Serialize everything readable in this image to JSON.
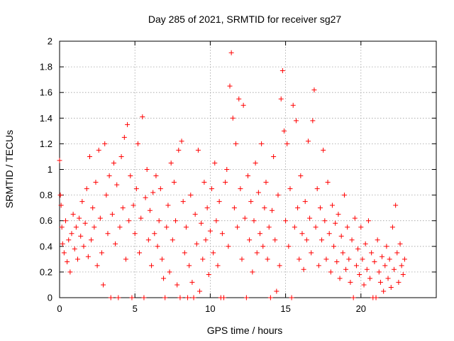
{
  "chart_data": {
    "type": "scatter",
    "title": "Day 285 of 2021, SRMTID for receiver sg27",
    "xlabel": "GPS time / hours",
    "ylabel": "SRMTID / TECUs",
    "xlim": [
      0,
      25
    ],
    "ylim": [
      0,
      2
    ],
    "xticks": [
      0,
      5,
      10,
      15,
      20
    ],
    "yticks": [
      0,
      0.2,
      0.4,
      0.6,
      0.8,
      1,
      1.2,
      1.4,
      1.6,
      1.8,
      2
    ],
    "xtick_labels": [
      "0",
      "5",
      "10",
      "15",
      "20"
    ],
    "ytick_labels": [
      "0",
      "0.2",
      "0.4",
      "0.6",
      "0.8",
      "1",
      "1.2",
      "1.4",
      "1.6",
      "1.8",
      "2"
    ],
    "grid": true,
    "marker": "plus",
    "color": "#ff0000",
    "series": [
      {
        "name": "SRMTID",
        "points": [
          [
            0.0,
            1.07
          ],
          [
            0.05,
            0.8
          ],
          [
            0.1,
            0.72
          ],
          [
            0.15,
            0.55
          ],
          [
            0.2,
            0.42
          ],
          [
            0.3,
            0.35
          ],
          [
            0.4,
            0.6
          ],
          [
            0.5,
            0.28
          ],
          [
            0.6,
            0.45
          ],
          [
            0.7,
            0.2
          ],
          [
            0.8,
            0.5
          ],
          [
            0.9,
            0.65
          ],
          [
            1.0,
            0.38
          ],
          [
            1.1,
            0.55
          ],
          [
            1.2,
            0.3
          ],
          [
            1.3,
            0.62
          ],
          [
            1.4,
            0.48
          ],
          [
            1.5,
            0.75
          ],
          [
            1.6,
            0.4
          ],
          [
            1.7,
            0.58
          ],
          [
            1.8,
            0.85
          ],
          [
            1.9,
            0.32
          ],
          [
            2.0,
            1.1
          ],
          [
            2.1,
            0.45
          ],
          [
            2.2,
            0.7
          ],
          [
            2.3,
            0.55
          ],
          [
            2.4,
            0.9
          ],
          [
            2.5,
            0.25
          ],
          [
            2.6,
            1.15
          ],
          [
            2.7,
            0.62
          ],
          [
            2.8,
            0.35
          ],
          [
            2.9,
            0.1
          ],
          [
            3.0,
            1.2
          ],
          [
            3.1,
            0.8
          ],
          [
            3.2,
            0.5
          ],
          [
            3.3,
            0.95
          ],
          [
            3.4,
            0.0
          ],
          [
            3.5,
            0.65
          ],
          [
            3.6,
            1.05
          ],
          [
            3.7,
            0.42
          ],
          [
            3.8,
            0.88
          ],
          [
            3.9,
            0.0
          ],
          [
            4.0,
            0.55
          ],
          [
            4.1,
            1.1
          ],
          [
            4.2,
            0.7
          ],
          [
            4.3,
            1.25
          ],
          [
            4.4,
            0.3
          ],
          [
            4.5,
            1.35
          ],
          [
            4.6,
            0.6
          ],
          [
            4.7,
            0.95
          ],
          [
            4.8,
            0.0
          ],
          [
            4.9,
            0.72
          ],
          [
            5.0,
            0.5
          ],
          [
            5.1,
            0.85
          ],
          [
            5.2,
            1.2
          ],
          [
            5.3,
            0.35
          ],
          [
            5.4,
            0.62
          ],
          [
            5.5,
            1.41
          ],
          [
            5.6,
            0.0
          ],
          [
            5.7,
            0.78
          ],
          [
            5.8,
            1.0
          ],
          [
            5.9,
            0.45
          ],
          [
            6.0,
            0.68
          ],
          [
            6.1,
            0.25
          ],
          [
            6.2,
            0.82
          ],
          [
            6.3,
            0.5
          ],
          [
            6.4,
            0.95
          ],
          [
            6.5,
            0.4
          ],
          [
            6.6,
            0.6
          ],
          [
            6.7,
            0.85
          ],
          [
            6.8,
            0.3
          ],
          [
            6.9,
            0.15
          ],
          [
            7.0,
            0.0
          ],
          [
            7.1,
            0.55
          ],
          [
            7.2,
            0.72
          ],
          [
            7.3,
            0.2
          ],
          [
            7.4,
            1.05
          ],
          [
            7.5,
            0.45
          ],
          [
            7.6,
            0.9
          ],
          [
            7.7,
            0.6
          ],
          [
            7.8,
            0.1
          ],
          [
            7.9,
            1.15
          ],
          [
            8.0,
            0.0
          ],
          [
            8.1,
            1.22
          ],
          [
            8.2,
            0.75
          ],
          [
            8.3,
            0.35
          ],
          [
            8.4,
            0.55
          ],
          [
            8.5,
            0.0
          ],
          [
            8.6,
            0.25
          ],
          [
            8.7,
            0.8
          ],
          [
            8.8,
            0.12
          ],
          [
            8.9,
            0.0
          ],
          [
            9.0,
            0.65
          ],
          [
            9.1,
            0.42
          ],
          [
            9.2,
            1.15
          ],
          [
            9.3,
            0.05
          ],
          [
            9.4,
            0.58
          ],
          [
            9.5,
            0.3
          ],
          [
            9.6,
            0.9
          ],
          [
            9.7,
            0.45
          ],
          [
            9.8,
            0.7
          ],
          [
            9.9,
            0.18
          ],
          [
            10.0,
            0.52
          ],
          [
            10.1,
            0.85
          ],
          [
            10.2,
            0.35
          ],
          [
            10.3,
            1.05
          ],
          [
            10.4,
            0.6
          ],
          [
            10.5,
            0.25
          ],
          [
            10.6,
            0.75
          ],
          [
            10.7,
            0.0
          ],
          [
            10.8,
            0.5
          ],
          [
            10.9,
            0.0
          ],
          [
            11.0,
            0.9
          ],
          [
            11.1,
            1.0
          ],
          [
            11.2,
            0.4
          ],
          [
            11.3,
            1.65
          ],
          [
            11.4,
            1.91
          ],
          [
            11.5,
            1.4
          ],
          [
            11.6,
            0.7
          ],
          [
            11.7,
            1.2
          ],
          [
            11.8,
            0.55
          ],
          [
            11.9,
            1.55
          ],
          [
            12.0,
            0.85
          ],
          [
            12.1,
            0.3
          ],
          [
            12.2,
            1.5
          ],
          [
            12.3,
            0.62
          ],
          [
            12.4,
            0.0
          ],
          [
            12.5,
            0.95
          ],
          [
            12.6,
            0.45
          ],
          [
            12.7,
            0.75
          ],
          [
            12.8,
            0.2
          ],
          [
            12.9,
            0.6
          ],
          [
            13.0,
            1.05
          ],
          [
            13.1,
            0.35
          ],
          [
            13.2,
            0.82
          ],
          [
            13.3,
            0.5
          ],
          [
            13.4,
            1.2
          ],
          [
            13.5,
            0.4
          ],
          [
            13.6,
            0.7
          ],
          [
            13.7,
            0.9
          ],
          [
            13.8,
            0.3
          ],
          [
            13.9,
            0.55
          ],
          [
            14.0,
            0.0
          ],
          [
            14.1,
            0.68
          ],
          [
            14.2,
            1.1
          ],
          [
            14.3,
            0.45
          ],
          [
            14.4,
            0.05
          ],
          [
            14.5,
            0.8
          ],
          [
            14.6,
            0.25
          ],
          [
            14.7,
            1.55
          ],
          [
            14.8,
            1.77
          ],
          [
            14.9,
            1.3
          ],
          [
            15.0,
            0.6
          ],
          [
            15.1,
            1.2
          ],
          [
            15.2,
            0.4
          ],
          [
            15.3,
            0.85
          ],
          [
            15.4,
            0.0
          ],
          [
            15.5,
            1.5
          ],
          [
            15.6,
            0.55
          ],
          [
            15.7,
            1.38
          ],
          [
            15.8,
            0.7
          ],
          [
            15.9,
            0.3
          ],
          [
            16.0,
            0.95
          ],
          [
            16.1,
            0.5
          ],
          [
            16.2,
            0.22
          ],
          [
            16.3,
            0.75
          ],
          [
            16.4,
            0.45
          ],
          [
            16.5,
            1.22
          ],
          [
            16.6,
            0.62
          ],
          [
            16.7,
            0.35
          ],
          [
            16.8,
            1.38
          ],
          [
            16.9,
            1.62
          ],
          [
            17.0,
            0.55
          ],
          [
            17.1,
            0.85
          ],
          [
            17.2,
            0.25
          ],
          [
            17.3,
            0.7
          ],
          [
            17.4,
            0.45
          ],
          [
            17.5,
            1.15
          ],
          [
            17.6,
            0.6
          ],
          [
            17.7,
            0.3
          ],
          [
            17.8,
            0.9
          ],
          [
            17.9,
            0.5
          ],
          [
            18.0,
            0.2
          ],
          [
            18.1,
            0.72
          ],
          [
            18.2,
            0.4
          ],
          [
            18.3,
            0.58
          ],
          [
            18.4,
            0.28
          ],
          [
            18.5,
            0.65
          ],
          [
            18.6,
            0.15
          ],
          [
            18.7,
            0.48
          ],
          [
            18.8,
            0.35
          ],
          [
            18.9,
            0.8
          ],
          [
            19.0,
            0.22
          ],
          [
            19.1,
            0.55
          ],
          [
            19.2,
            0.3
          ],
          [
            19.3,
            0.12
          ],
          [
            19.4,
            0.45
          ],
          [
            19.5,
            0.0
          ],
          [
            19.6,
            0.62
          ],
          [
            19.7,
            0.25
          ],
          [
            19.8,
            0.38
          ],
          [
            19.9,
            0.18
          ],
          [
            20.0,
            0.55
          ],
          [
            20.1,
            0.3
          ],
          [
            20.2,
            0.1
          ],
          [
            20.3,
            0.42
          ],
          [
            20.4,
            0.22
          ],
          [
            20.5,
            0.6
          ],
          [
            20.6,
            0.15
          ],
          [
            20.7,
            0.35
          ],
          [
            20.8,
            0.0
          ],
          [
            20.9,
            0.28
          ],
          [
            21.0,
            0.0
          ],
          [
            21.1,
            0.45
          ],
          [
            21.2,
            0.2
          ],
          [
            21.3,
            0.12
          ],
          [
            21.4,
            0.32
          ],
          [
            21.5,
            0.05
          ],
          [
            21.6,
            0.25
          ],
          [
            21.7,
            0.4
          ],
          [
            21.8,
            0.15
          ],
          [
            21.9,
            0.3
          ],
          [
            22.0,
            0.08
          ],
          [
            22.1,
            0.55
          ],
          [
            22.2,
            0.22
          ],
          [
            22.3,
            0.72
          ],
          [
            22.4,
            0.35
          ],
          [
            22.5,
            0.12
          ],
          [
            22.6,
            0.42
          ],
          [
            22.7,
            0.25
          ],
          [
            22.8,
            0.18
          ],
          [
            22.9,
            0.3
          ]
        ]
      }
    ]
  }
}
